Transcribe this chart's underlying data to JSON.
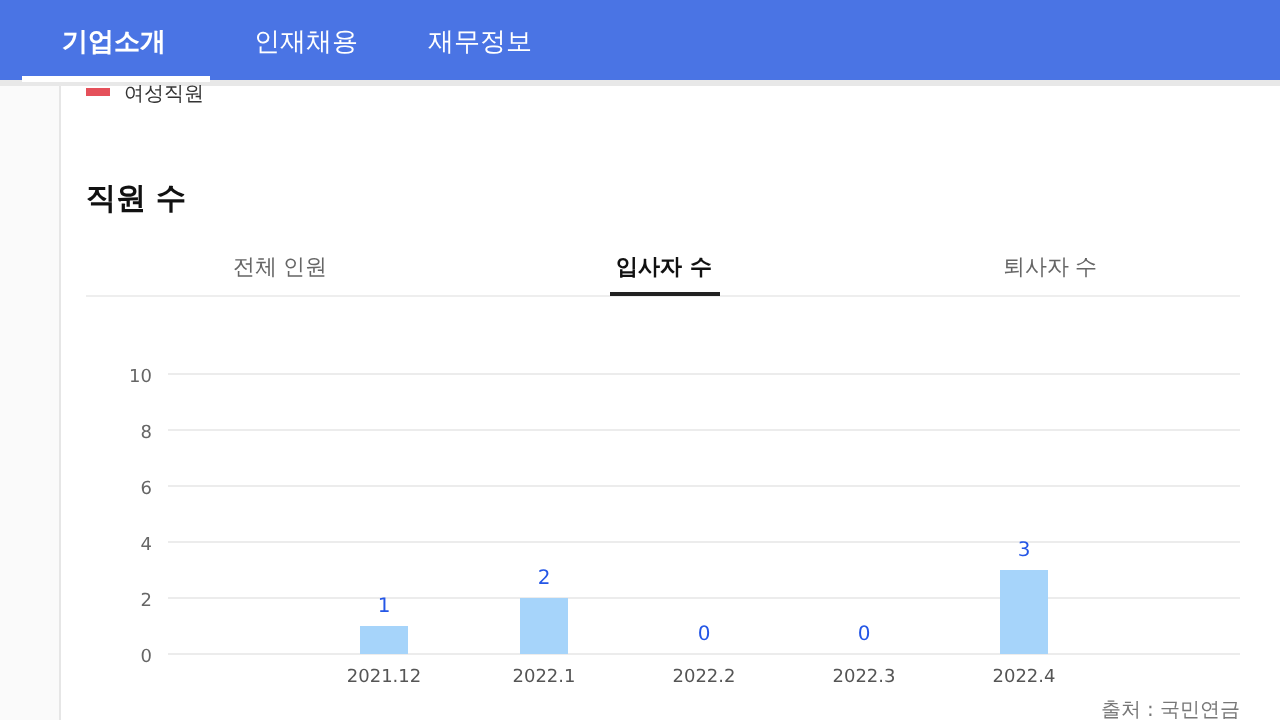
{
  "chart_data": {
    "type": "bar",
    "title": "직원 수",
    "annotations": [
      "기업소개",
      "인재채용",
      "재무정보",
      "여성직원",
      "전체 인원",
      "입사자 수",
      "퇴사자 수",
      "출처 : 국민연금"
    ],
    "categories": [
      "2021.12",
      "2022.1",
      "2022.2",
      "2022.3",
      "2022.4"
    ],
    "values": [
      1,
      2,
      0,
      0,
      3
    ],
    "color": "#a6d4fa",
    "ylim": [
      0,
      10
    ],
    "yticks": [
      0,
      2,
      4,
      6,
      8,
      10
    ],
    "grid": "y",
    "data_labels": true
  }
}
